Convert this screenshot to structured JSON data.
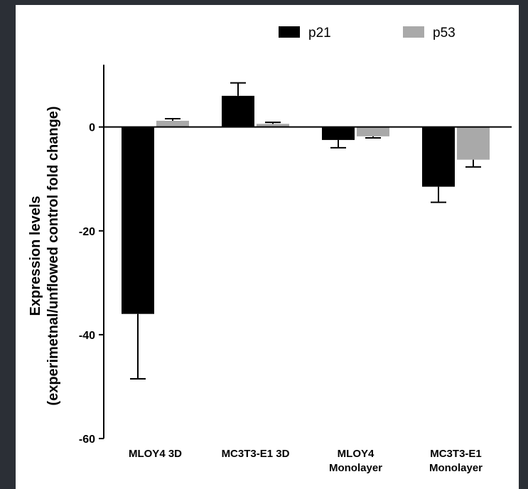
{
  "chart_data": {
    "type": "bar",
    "title": "",
    "xlabel": "",
    "ylabel": [
      "Expression levels",
      "(experimetnal/unflowed control fold change)"
    ],
    "ylim": [
      -60,
      12
    ],
    "yticks": [
      0,
      -20,
      -40,
      -60
    ],
    "categories": [
      [
        "MLOY4 3D"
      ],
      [
        "MC3T3-E1 3D"
      ],
      [
        "MLOY4",
        "Monolayer"
      ],
      [
        "MC3T3-E1",
        "Monolayer"
      ]
    ],
    "series": [
      {
        "name": "p21",
        "color": "#000000",
        "values": [
          -36,
          6,
          -2.5,
          -11.5
        ],
        "error": [
          12.5,
          2.5,
          1.5,
          3
        ]
      },
      {
        "name": "p53",
        "color": "#a9a9a9",
        "values": [
          1.2,
          0.6,
          -1.8,
          -6.3
        ],
        "error": [
          0.4,
          0.3,
          0.3,
          1.4
        ]
      }
    ],
    "legend": {
      "position": "top-right"
    },
    "grid": false
  }
}
